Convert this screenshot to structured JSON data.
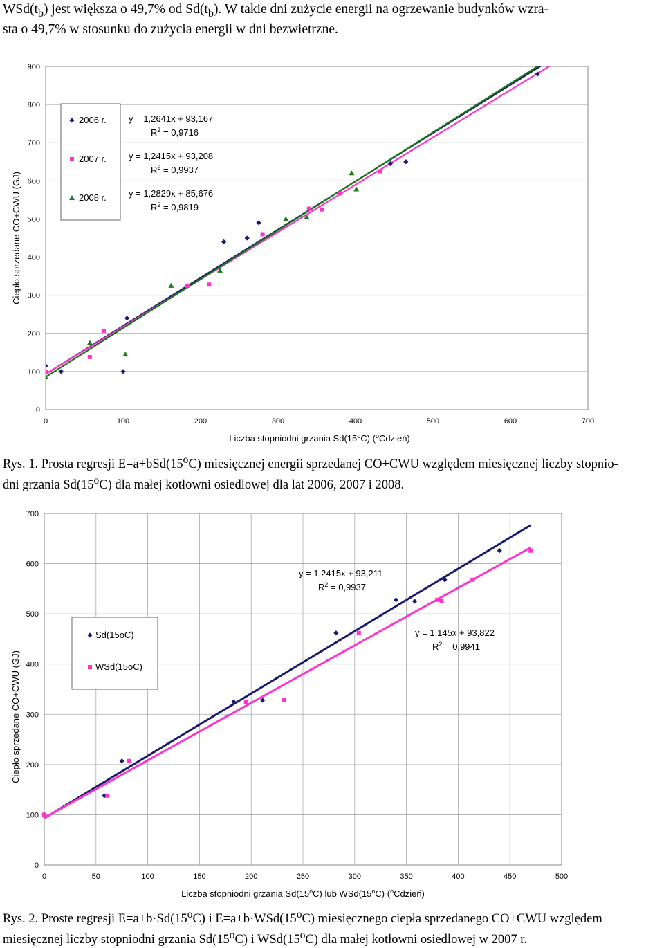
{
  "intro": {
    "line1": "WSd(t",
    "sub1": "b",
    "line1b": ") jest większa o 49,7% od Sd(t",
    "sub2": "b",
    "line1c": "). W takie dni zużycie energii na ogrzewanie budynków wzra-",
    "line2": "sta o 49,7% w stosunku do zużycia energii w dni bezwietrzne."
  },
  "figure1": {
    "caption_a": "Rys. 1. Prosta regresji E=a+bSd(15",
    "caption_sup": "o",
    "caption_b": "C) miesięcznej energii sprzedanej CO+CWU względem miesięcznej liczby stopnio-",
    "caption_c": "dni grzania Sd(15",
    "caption_sup2": "o",
    "caption_d": "C) dla małej kotłowni osiedlowej dla  lat 2006, 2007 i 2008."
  },
  "figure2": {
    "caption_a": "Rys. 2. Proste regresji E=a+b·Sd(15",
    "caption_sup": "o",
    "caption_b": "C) i E=a+b·WSd(15",
    "caption_sup2": "o",
    "caption_c": "C)   miesięcznego ciepła sprzedanego  CO+CWU względem",
    "caption_d": "miesięcznej liczby stopniodni grzania Sd(15",
    "caption_sup3": "o",
    "caption_e": "C) i WSd(15",
    "caption_sup4": "o",
    "caption_f": "C) dla małej kotłowni osiedlowej w 2007 r."
  },
  "chart_data": [
    {
      "type": "scatter",
      "xlabel": "Liczba stopniodni grzania Sd(15°C) (°Cdzień)",
      "ylabel": "Ciepło sprzedane CO+CWU (GJ)",
      "xlim": [
        0,
        700
      ],
      "ylim": [
        0,
        900
      ],
      "xticks": [
        0,
        100,
        200,
        300,
        400,
        500,
        600,
        700
      ],
      "yticks": [
        0,
        100,
        200,
        300,
        400,
        500,
        600,
        700,
        800,
        900
      ],
      "grid": "horizontal",
      "legend": "top-left",
      "series": [
        {
          "name": "2006 r.",
          "color": "#1a1a6e",
          "marker": "diamond",
          "x": [
            0,
            20,
            100,
            105,
            230,
            260,
            275,
            445,
            465,
            635
          ],
          "y": [
            115,
            100,
            100,
            240,
            440,
            450,
            490,
            645,
            650,
            880
          ],
          "trend": "y = 1,2641x + 93,167",
          "r2": "R² = 0,9716",
          "slope": 1.2641,
          "intercept": 93.167
        },
        {
          "name": "2007 r.",
          "color": "#ff33cc",
          "marker": "square",
          "x": [
            0,
            57,
            75,
            183,
            211,
            280,
            340,
            357,
            380,
            432
          ],
          "y": [
            100,
            138,
            207,
            325,
            328,
            460,
            527,
            525,
            567,
            625
          ],
          "trend": "y = 1,2415x + 93,208",
          "r2": "R² = 0,9937",
          "slope": 1.2415,
          "intercept": 93.208
        },
        {
          "name": "2008 r.",
          "color": "#1a7a1a",
          "marker": "triangle",
          "x": [
            0,
            57,
            103,
            162,
            225,
            310,
            337,
            395,
            401
          ],
          "y": [
            85,
            175,
            145,
            325,
            365,
            500,
            505,
            620,
            578
          ],
          "trend": "y = 1,2829x + 85,676",
          "r2": "R² = 0,9819",
          "slope": 1.2829,
          "intercept": 85.676
        }
      ]
    },
    {
      "type": "scatter",
      "xlabel": "Liczba stopniodni grzania Sd(15°C) lub WSd(15°C) (°Cdzień)",
      "ylabel": "Ciepło sprzedane CO+CWU (GJ)",
      "xlim": [
        0,
        500
      ],
      "ylim": [
        0,
        700
      ],
      "xticks": [
        0,
        50,
        100,
        150,
        200,
        250,
        300,
        350,
        400,
        450,
        500
      ],
      "yticks": [
        0,
        100,
        200,
        300,
        400,
        500,
        600,
        700
      ],
      "grid": "both",
      "legend": "left",
      "series": [
        {
          "name": "Sd(15oC)",
          "color": "#1a1a6e",
          "marker": "diamond",
          "x": [
            0,
            58,
            75,
            183,
            211,
            282,
            340,
            358,
            387,
            440
          ],
          "y": [
            100,
            138,
            207,
            325,
            328,
            462,
            528,
            525,
            568,
            626
          ],
          "trend": "y = 1,2415x + 93,211",
          "r2": "R² = 0,9937",
          "slope": 1.2415,
          "intercept": 93.211
        },
        {
          "name": "WSd(15oC)",
          "color": "#ff33cc",
          "marker": "square",
          "x": [
            0,
            61,
            82,
            195,
            232,
            304,
            380,
            384,
            414,
            470
          ],
          "y": [
            100,
            138,
            207,
            325,
            328,
            462,
            528,
            525,
            568,
            626
          ],
          "trend": "y = 1,145x + 93,822",
          "r2": "R² = 0,9941",
          "slope": 1.145,
          "intercept": 93.822
        }
      ]
    }
  ]
}
